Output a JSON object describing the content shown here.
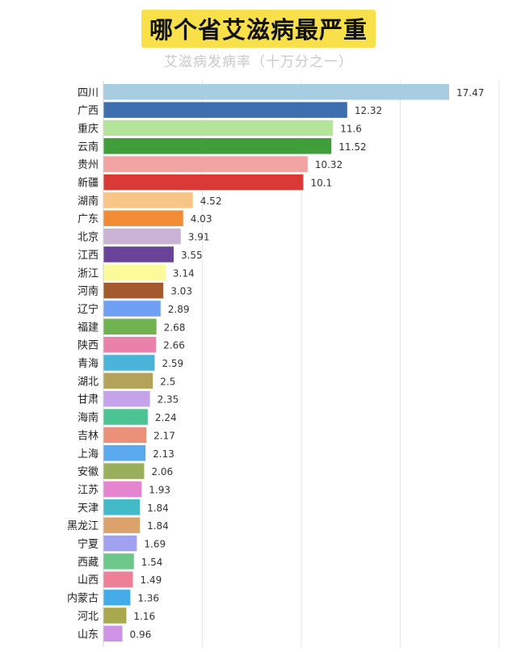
{
  "header": {
    "title": "哪个省艾滋病最严重",
    "subtitle": "艾滋病发病率（十万分之一）"
  },
  "chart_data": {
    "type": "bar",
    "orientation": "horizontal",
    "title": "哪个省艾滋病最严重",
    "subtitle": "艾滋病发病率（十万分之一）",
    "xlabel": "",
    "ylabel": "",
    "xlim": [
      0,
      20
    ],
    "grid": true,
    "legend": "none",
    "categories": [
      "四川",
      "广西",
      "重庆",
      "云南",
      "贵州",
      "新疆",
      "湖南",
      "广东",
      "北京",
      "江西",
      "浙江",
      "河南",
      "辽宁",
      "福建",
      "陕西",
      "青海",
      "湖北",
      "甘肃",
      "海南",
      "吉林",
      "上海",
      "安徽",
      "江苏",
      "天津",
      "黑龙江",
      "宁夏",
      "西藏",
      "山西",
      "内蒙古",
      "河北",
      "山东"
    ],
    "values": [
      17.47,
      12.32,
      11.6,
      11.52,
      10.32,
      10.1,
      4.52,
      4.03,
      3.91,
      3.55,
      3.14,
      3.03,
      2.89,
      2.68,
      2.66,
      2.59,
      2.5,
      2.35,
      2.24,
      2.17,
      2.13,
      2.06,
      1.93,
      1.84,
      1.84,
      1.69,
      1.54,
      1.49,
      1.36,
      1.16,
      0.96
    ],
    "value_labels": [
      "17.47",
      "12.32",
      "11.6",
      "11.52",
      "10.32",
      "10.1",
      "4.52",
      "4.03",
      "3.91",
      "3.55",
      "3.14",
      "3.03",
      "2.89",
      "2.68",
      "2.66",
      "2.59",
      "2.5",
      "2.35",
      "2.24",
      "2.17",
      "2.13",
      "2.06",
      "1.93",
      "1.84",
      "1.84",
      "1.69",
      "1.54",
      "1.49",
      "1.36",
      "1.16",
      "0.96"
    ],
    "colors": [
      "#a8cce0",
      "#3d6faf",
      "#b4e39a",
      "#3f9e3a",
      "#f1a3a1",
      "#d93a36",
      "#f7c586",
      "#f28c34",
      "#c9b2d4",
      "#6a449a",
      "#fbfb9c",
      "#a35a2c",
      "#6e9ff2",
      "#6fb24f",
      "#e981ab",
      "#4ab3d8",
      "#b5a25a",
      "#c4a3e8",
      "#4cc392",
      "#ea8f78",
      "#5aa9ee",
      "#9aaf5b",
      "#e685cf",
      "#43bac8",
      "#dba26b",
      "#a1a1f2",
      "#6cc78a",
      "#ef7f97",
      "#43abe8",
      "#a8a84c",
      "#cd94e6"
    ]
  }
}
